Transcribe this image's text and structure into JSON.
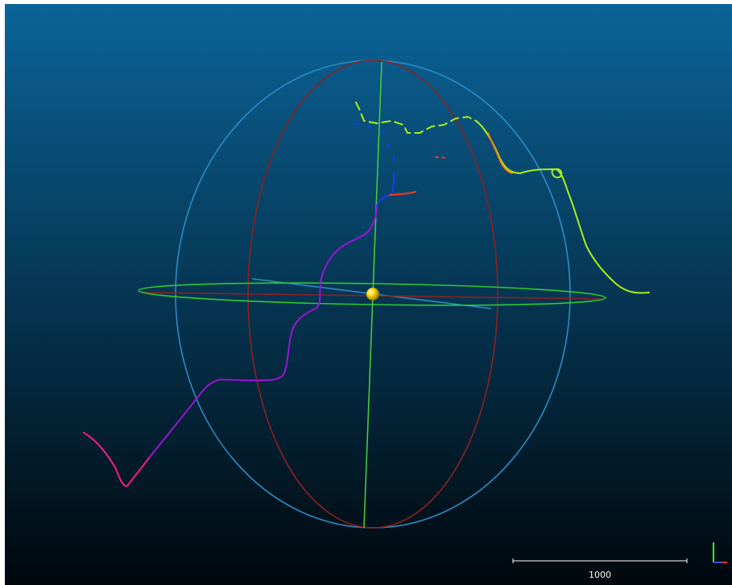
{
  "viewer": {
    "background_top": "#0b6499",
    "background_bottom": "#00070c"
  },
  "scene": {
    "sphere_meridian_blue": "#2a8cc7",
    "sphere_meridian_red": "#8d2020",
    "sphere_equator_green": "#2ec832",
    "vertical_axis_green": "#46c83c",
    "center_ball_color": "#ffd800",
    "track_colors": [
      "#ff1a8c",
      "#9a14d8",
      "#1a3aff",
      "#ff3a18",
      "#a8f016",
      "#ff7a10"
    ]
  },
  "scale_bar": {
    "label": "1000"
  },
  "axis_gizmo": {
    "x_color": "#ff3030",
    "y_color": "#30ff30",
    "z_color": "#3050ff"
  }
}
